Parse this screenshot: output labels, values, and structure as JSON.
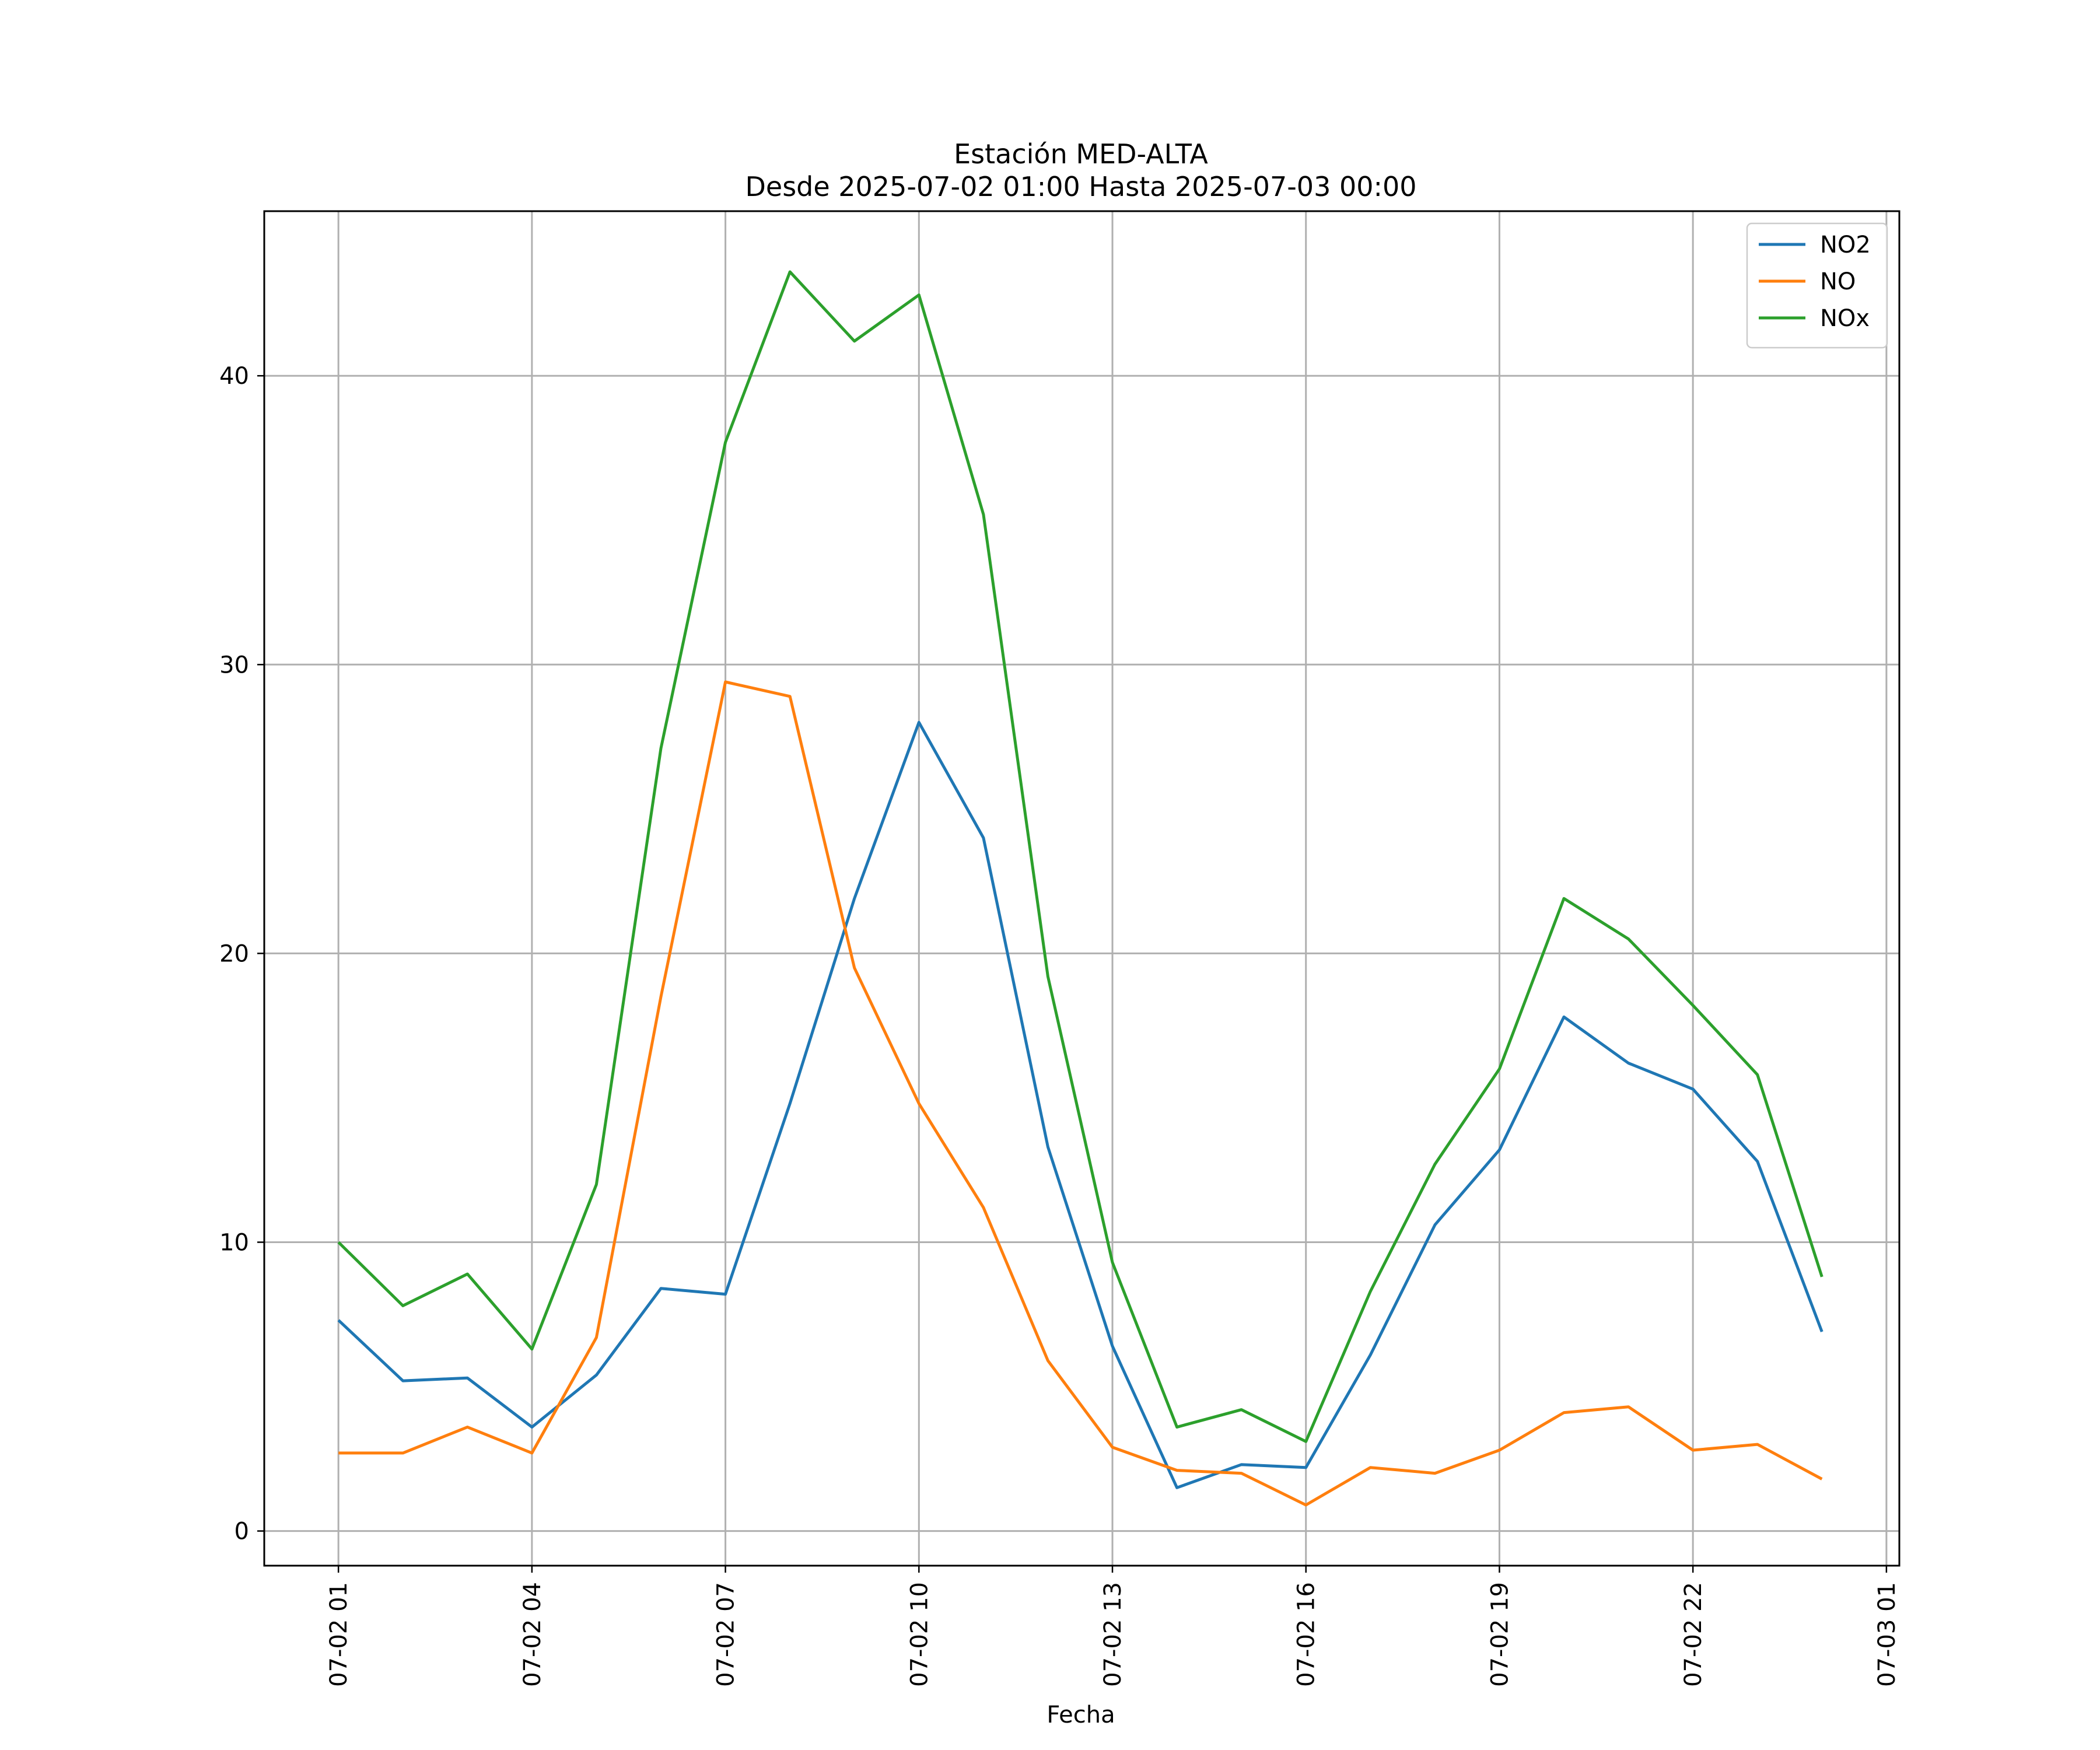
{
  "chart_data": {
    "type": "line",
    "title": "Estación MED-ALTA",
    "subtitle": "Desde 2025-07-02 01:00 Hasta 2025-07-03 00:00",
    "xlabel": "Fecha",
    "ylabel": "",
    "x": [
      "07-02 01",
      "07-02 02",
      "07-02 03",
      "07-02 04",
      "07-02 05",
      "07-02 06",
      "07-02 07",
      "07-02 08",
      "07-02 09",
      "07-02 10",
      "07-02 11",
      "07-02 12",
      "07-02 13",
      "07-02 14",
      "07-02 15",
      "07-02 16",
      "07-02 17",
      "07-02 18",
      "07-02 19",
      "07-02 20",
      "07-02 21",
      "07-02 22",
      "07-02 23",
      "07-03 00"
    ],
    "x_ticks": [
      "07-02 01",
      "07-02 04",
      "07-02 07",
      "07-02 10",
      "07-02 13",
      "07-02 16",
      "07-02 19",
      "07-02 22",
      "07-03 01"
    ],
    "y_ticks": [
      0,
      10,
      20,
      30,
      40
    ],
    "ylim": [
      -1.2,
      45.7
    ],
    "grid": true,
    "legend_position": "top-right",
    "series": [
      {
        "name": "NO2",
        "color": "#1f77b4",
        "values": [
          7.3,
          5.2,
          5.3,
          3.6,
          5.4,
          8.4,
          8.2,
          14.8,
          21.9,
          28.0,
          24.0,
          13.3,
          6.4,
          1.5,
          2.3,
          2.2,
          6.1,
          10.6,
          13.2,
          17.8,
          16.2,
          15.3,
          12.8,
          6.9
        ]
      },
      {
        "name": "NO",
        "color": "#ff7f0e",
        "values": [
          2.7,
          2.7,
          3.6,
          2.7,
          6.7,
          18.5,
          29.4,
          28.9,
          19.5,
          14.8,
          11.2,
          5.9,
          2.9,
          2.1,
          2.0,
          0.9,
          2.2,
          2.0,
          2.8,
          4.1,
          4.3,
          2.8,
          3.0,
          1.8
        ]
      },
      {
        "name": "NOx",
        "color": "#2ca02c",
        "values": [
          10.0,
          7.8,
          8.9,
          6.3,
          12.0,
          27.1,
          37.7,
          43.6,
          41.2,
          42.8,
          35.2,
          19.2,
          9.3,
          3.6,
          4.2,
          3.1,
          8.3,
          12.7,
          16.0,
          21.9,
          20.5,
          18.2,
          15.8,
          8.8
        ]
      }
    ]
  }
}
